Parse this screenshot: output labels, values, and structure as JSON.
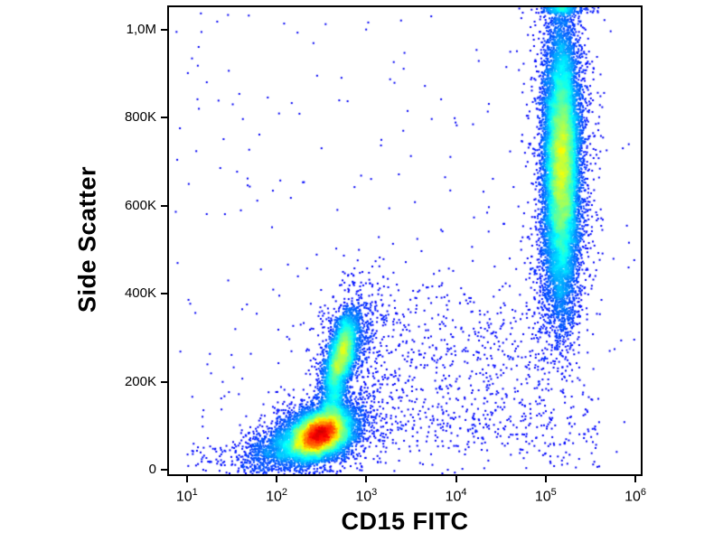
{
  "figure": {
    "background_color": "#ffffff",
    "frame_color": "#000000",
    "text_color": "#000000"
  },
  "chart_data": {
    "type": "density_scatter",
    "title": "",
    "xlabel": "CD15 FITC",
    "ylabel": "Side Scatter",
    "x_scale": "log",
    "grid": "off",
    "legend": "none",
    "colormap": "jet",
    "x_axis": {
      "log_min": 0.8,
      "log_max": 6.06,
      "ticks": [
        {
          "log": 1,
          "base": "10",
          "exp": "1"
        },
        {
          "log": 2,
          "base": "10",
          "exp": "2"
        },
        {
          "log": 3,
          "base": "10",
          "exp": "3"
        },
        {
          "log": 4,
          "base": "10",
          "exp": "4"
        },
        {
          "log": 5,
          "base": "10",
          "exp": "5"
        },
        {
          "log": 6,
          "base": "10",
          "exp": "6"
        }
      ]
    },
    "y_axis": {
      "min": -10000,
      "max": 1051000,
      "ticks": [
        {
          "value": 0,
          "label": "0"
        },
        {
          "value": 200000,
          "label": "200K"
        },
        {
          "value": 400000,
          "label": "400K"
        },
        {
          "value": 600000,
          "label": "600K"
        },
        {
          "value": 800000,
          "label": "800K"
        },
        {
          "value": 1000000,
          "label": "1,0M"
        }
      ]
    },
    "populations": [
      {
        "name": "lymphocytes-core",
        "count": 9000,
        "x": {
          "type": "gauss",
          "mean": 2.48,
          "sigma": 0.17
        },
        "y": {
          "type": "gauss",
          "mean": 80000,
          "sigma": 27000
        },
        "rho": 0.3
      },
      {
        "name": "lymphocytes-halo",
        "count": 1500,
        "x": {
          "type": "gauss",
          "mean": 2.45,
          "sigma": 0.34
        },
        "y": {
          "type": "gauss",
          "mean": 80000,
          "sigma": 48000
        },
        "rho": 0.3
      },
      {
        "name": "debris",
        "count": 900,
        "x": {
          "type": "gauss",
          "mean": 2.05,
          "sigma": 0.26
        },
        "y": {
          "type": "gauss",
          "mean": 45000,
          "sigma": 28000
        },
        "rho": 0.45
      },
      {
        "name": "debris-far-left",
        "count": 80,
        "x": {
          "type": "uniform",
          "min": 1.0,
          "max": 1.9
        },
        "y": {
          "type": "gauss",
          "mean": 35000,
          "sigma": 25000
        }
      },
      {
        "name": "monocyte-bridge",
        "count": 900,
        "x": {
          "type": "gauss",
          "mean": 2.63,
          "sigma": 0.07
        },
        "y": {
          "type": "gauss",
          "mean": 155000,
          "sigma": 45000
        },
        "rho": 0.2
      },
      {
        "name": "monocytes-core",
        "count": 3200,
        "x": {
          "type": "gauss",
          "mean": 2.73,
          "sigma": 0.09
        },
        "y": {
          "type": "gauss",
          "mean": 265000,
          "sigma": 46000
        },
        "rho": 0.55
      },
      {
        "name": "monocytes-halo",
        "count": 700,
        "x": {
          "type": "gauss",
          "mean": 2.8,
          "sigma": 0.2
        },
        "y": {
          "type": "gauss",
          "mean": 275000,
          "sigma": 80000
        },
        "rho": 0.3
      },
      {
        "name": "granulocytes-core",
        "count": 13000,
        "x": {
          "type": "gauss",
          "mean": 5.18,
          "sigma": 0.095
        },
        "y": {
          "type": "gauss",
          "mean": 700000,
          "sigma": 150000
        },
        "rho": 0,
        "clamp_top": true
      },
      {
        "name": "granulocytes-halo",
        "count": 1800,
        "x": {
          "type": "gauss",
          "mean": 5.18,
          "sigma": 0.17
        },
        "y": {
          "type": "gauss",
          "mean": 690000,
          "sigma": 230000
        },
        "rho": 0,
        "clamp_top": true
      },
      {
        "name": "granulocytes-tail",
        "count": 400,
        "x": {
          "type": "gauss",
          "mean": 5.15,
          "sigma": 0.12
        },
        "y": {
          "type": "gauss",
          "mean": 430000,
          "sigma": 70000
        },
        "rho": 0
      },
      {
        "name": "noise-mid-band",
        "count": 550,
        "x": {
          "type": "uniform",
          "min": 2.9,
          "max": 5.0
        },
        "y": {
          "type": "gauss",
          "mean": 270000,
          "sigma": 90000
        }
      },
      {
        "name": "noise-low-band",
        "count": 320,
        "x": {
          "type": "uniform",
          "min": 2.9,
          "max": 5.6
        },
        "y": {
          "type": "gauss",
          "mean": 95000,
          "sigma": 50000
        }
      },
      {
        "name": "noise-global",
        "count": 260,
        "x": {
          "type": "uniform",
          "min": 0.85,
          "max": 6.0
        },
        "y": {
          "type": "uniform",
          "min": 0,
          "max": 1040000
        }
      }
    ]
  }
}
